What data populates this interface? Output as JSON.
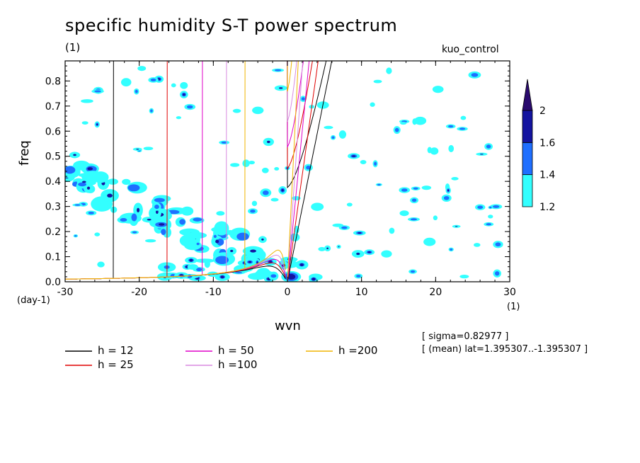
{
  "title": "specific humidity S-T power spectrum",
  "units_label": "(1)",
  "experiment": "kuo_control",
  "info_lines": [
    "[ sigma=0.82977 ]",
    "[ (mean) lat=1.395307..-1.395307 ]"
  ],
  "chart_data": {
    "type": "heatmap",
    "title": "specific humidity S-T power spectrum",
    "xlabel": "wvn",
    "ylabel": "freq",
    "x_unit_label": "(1)",
    "y_unit_label": "(day-1)",
    "xlim": [
      -30,
      30
    ],
    "ylim": [
      0,
      0.88
    ],
    "x_ticks": [
      -30,
      -20,
      -10,
      0,
      10,
      20,
      30
    ],
    "y_ticks": [
      0.0,
      0.1,
      0.2,
      0.3,
      0.4,
      0.5,
      0.6,
      0.7,
      0.8
    ],
    "x_tick_labels": [
      "-30",
      "-20",
      "-10",
      "0",
      "10",
      "20",
      "30"
    ],
    "y_tick_labels": [
      "0.0",
      "0.1",
      "0.2",
      "0.3",
      "0.4",
      "0.5",
      "0.6",
      "0.7",
      "0.8"
    ],
    "colorbar": {
      "levels": [
        1.2,
        1.4,
        1.6,
        2
      ],
      "labels": [
        "1.2",
        "1.4",
        "1.6",
        "2"
      ],
      "colors": [
        "#33ffff",
        "#1f6fff",
        "#1414a0",
        "#2a0a6e"
      ]
    },
    "dispersion_curves": [
      {
        "label": "h = 12",
        "h": 12,
        "color": "#000000"
      },
      {
        "label": "h = 25",
        "h": 25,
        "color": "#e00000"
      },
      {
        "label": "h = 50",
        "h": 50,
        "color": "#e000c8"
      },
      {
        "label": "h =100",
        "h": 100,
        "color": "#d88ae0"
      },
      {
        "label": "h =200",
        "h": 200,
        "color": "#f0b400"
      }
    ]
  }
}
